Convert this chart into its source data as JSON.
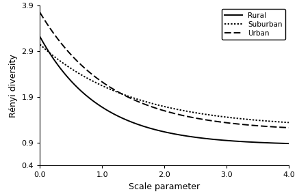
{
  "title": "",
  "xlabel": "Scale parameter",
  "ylabel": "Rényi diversity",
  "xlim": [
    0.0,
    4.0
  ],
  "ylim": [
    0.4,
    3.9
  ],
  "xticks": [
    0.0,
    1.0,
    2.0,
    3.0,
    4.0
  ],
  "yticks": [
    0.4,
    0.9,
    1.9,
    2.9,
    3.9
  ],
  "ytick_labels": [
    "0.4",
    "0.9",
    "1.9",
    "2.9",
    "3.9"
  ],
  "series": [
    {
      "label": "Rural",
      "linestyle": "solid",
      "linewidth": 1.4,
      "color": "#000000",
      "start_val": 3.22,
      "end_val": 0.845,
      "decay": 1.05
    },
    {
      "label": "Suburban",
      "linestyle": "dotted",
      "linewidth": 1.4,
      "color": "#000000",
      "start_val": 3.05,
      "end_val": 1.22,
      "decay": 0.68
    },
    {
      "label": "Urban",
      "linestyle": "dashed",
      "linewidth": 1.4,
      "color": "#000000",
      "start_val": 3.75,
      "end_val": 1.15,
      "decay": 0.88
    }
  ],
  "legend_loc": "upper right",
  "background_color": "#ffffff",
  "grid": false,
  "tick_fontsize": 8,
  "label_fontsize": 9
}
